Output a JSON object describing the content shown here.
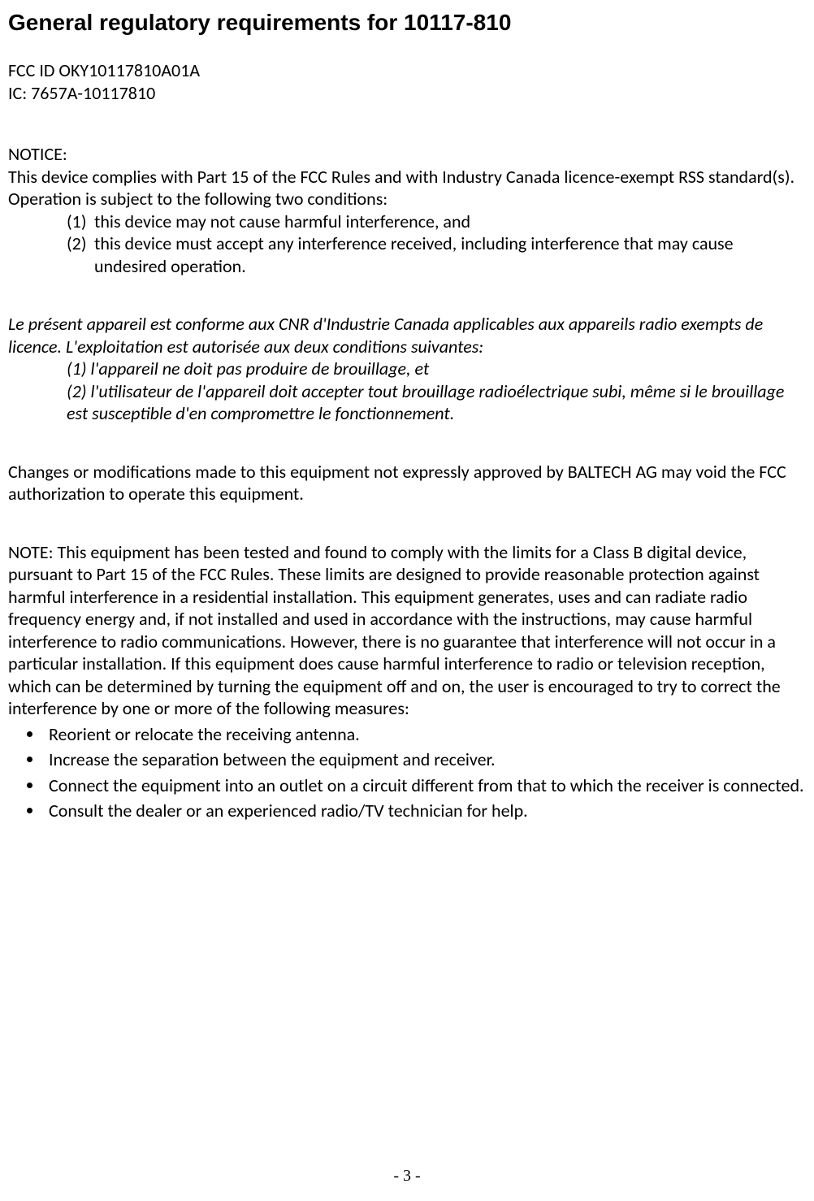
{
  "typography": {
    "body_font": "Calibri",
    "title_font": "Arial",
    "pagenum_font": "Times New Roman",
    "body_size_pt": 16,
    "title_size_pt": 20,
    "text_color": "#000000",
    "background_color": "#ffffff"
  },
  "title": "General regulatory requirements for 10117-810",
  "ids": {
    "fcc": "FCC ID OKY10117810A01A",
    "ic": "IC: 7657A-10117810"
  },
  "notice": {
    "label": "NOTICE:",
    "intro1": "This device complies with Part 15 of the FCC Rules and with Industry Canada licence-exempt RSS standard(s).",
    "intro2": "Operation is subject to the following two conditions:",
    "items": [
      {
        "num": "(1)",
        "text": "this device may not cause harmful interference, and"
      },
      {
        "num": "(2)",
        "text": "this device must accept any interference received, including interference that may cause undesired operation."
      }
    ]
  },
  "notice_fr": {
    "intro": "Le présent appareil est conforme aux CNR d'Industrie Canada applicables aux appareils radio exempts de licence. L'exploitation est autorisée aux deux conditions suivantes:",
    "items": [
      "(1) l'appareil ne doit pas produire de brouillage, et",
      "(2) l'utilisateur de l'appareil doit accepter tout brouillage radioélectrique subi, même si le brouillage est susceptible d'en compromettre le fonctionnement."
    ]
  },
  "changes": "Changes or modifications made to this equipment not expressly approved by BALTECH AG may void the FCC authorization to operate this equipment.",
  "note": "NOTE: This equipment has been tested and found to comply with the limits for a Class B digital device, pursuant to Part 15 of the FCC Rules.  These limits are designed to provide reasonable protection against harmful interference in a residential installation.  This equipment generates, uses and can radiate radio frequency energy and, if not installed and used in accordance with the instructions, may cause harmful interference to radio communications.  However, there is no guarantee that interference will not occur in a particular installation.  If this equipment does cause harmful interference to radio or television reception, which can be determined by turning the equipment off and on, the user is encouraged to try to correct the interference by one or more of the following measures:",
  "measures": [
    "Reorient or relocate the receiving antenna.",
    "Increase the separation between the equipment and receiver.",
    "Connect the equipment into an outlet on a circuit different from that to which the receiver is connected.",
    "Consult the dealer or an experienced radio/TV technician for help."
  ],
  "page_number": "- 3 -"
}
